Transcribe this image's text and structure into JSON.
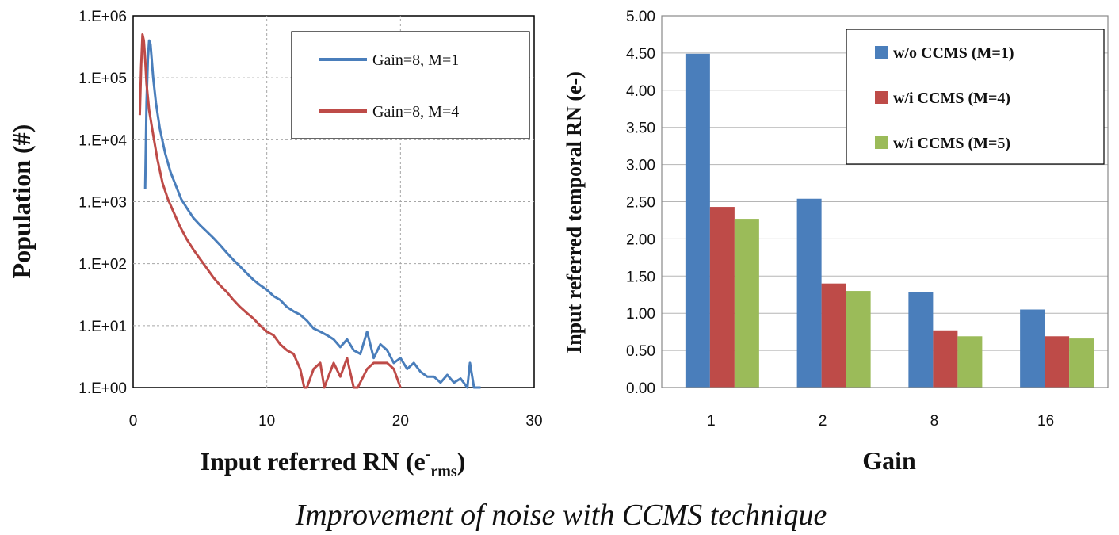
{
  "caption": "Improvement of noise with CCMS technique",
  "colors": {
    "blue": "#4a7ebb",
    "red": "#be4b48",
    "green": "#9bbb59",
    "grid": "#a6a6a6"
  },
  "chart_data": [
    {
      "type": "line",
      "xlabel_main": "Input referred RN (e",
      "xlabel_sup": "-",
      "xlabel_sub": "rms",
      "xlabel_end": ")",
      "ylabel": "Population (#)",
      "xlim": [
        0,
        30
      ],
      "xticks": [
        "0",
        "10",
        "20",
        "30"
      ],
      "ylim": [
        1,
        1000000
      ],
      "yscale": "log",
      "yticks": [
        "1.E+00",
        "1.E+01",
        "1.E+02",
        "1.E+03",
        "1.E+04",
        "1.E+05",
        "1.E+06"
      ],
      "grid": true,
      "legend_position": "top-right",
      "series": [
        {
          "name": "Gain=8, M=1",
          "color": "#4a7ebb",
          "x": [
            0.9,
            1.0,
            1.1,
            1.2,
            1.3,
            1.5,
            1.7,
            2.0,
            2.4,
            2.8,
            3.2,
            3.6,
            4.0,
            4.5,
            5.0,
            5.5,
            6.0,
            6.5,
            7.0,
            7.5,
            8.0,
            8.5,
            9.0,
            9.5,
            10.0,
            10.5,
            11.0,
            11.5,
            12.0,
            12.5,
            13.0,
            13.5,
            14.0,
            14.5,
            15.0,
            15.5,
            16.0,
            16.5,
            17.0,
            17.5,
            18.0,
            18.5,
            19.0,
            19.5,
            20.0,
            20.5,
            21.0,
            21.5,
            22.0,
            22.5,
            23.0,
            23.5,
            24.0,
            24.5,
            25.0,
            25.2,
            25.5,
            26.0
          ],
          "y": [
            1600,
            40000,
            200000,
            400000,
            350000,
            100000,
            40000,
            15000,
            6000,
            3000,
            1800,
            1100,
            800,
            550,
            420,
            330,
            260,
            200,
            150,
            115,
            90,
            70,
            55,
            45,
            38,
            30,
            26,
            20,
            17,
            15,
            12,
            9,
            8,
            7,
            6,
            4.5,
            6,
            4,
            3.5,
            8,
            3,
            5,
            4,
            2.5,
            3,
            2,
            2.5,
            1.8,
            1.5,
            1.5,
            1.2,
            1.6,
            1.2,
            1.4,
            1,
            2.5,
            1,
            1
          ]
        },
        {
          "name": "Gain=8, M=4",
          "color": "#be4b48",
          "x": [
            0.5,
            0.6,
            0.7,
            0.8,
            0.9,
            1.0,
            1.2,
            1.5,
            1.8,
            2.2,
            2.6,
            3.0,
            3.5,
            4.0,
            4.5,
            5.0,
            5.5,
            6.0,
            6.5,
            7.0,
            7.5,
            8.0,
            8.5,
            9.0,
            9.5,
            10.0,
            10.5,
            11.0,
            11.5,
            12.0,
            12.5,
            12.8,
            13.0,
            13.5,
            14.0,
            14.3,
            14.6,
            15.0,
            15.5,
            16.0,
            16.5,
            16.8,
            17.5,
            18.0,
            18.5,
            19.0,
            19.5,
            20.0
          ],
          "y": [
            25000,
            150000,
            500000,
            400000,
            200000,
            80000,
            30000,
            12000,
            5000,
            2000,
            1100,
            700,
            400,
            250,
            170,
            120,
            85,
            60,
            45,
            35,
            26,
            20,
            16,
            13,
            10,
            8,
            7,
            5,
            4,
            3.5,
            2,
            1,
            1,
            2,
            2.5,
            1,
            1.5,
            2.5,
            1.5,
            3,
            1,
            1,
            2,
            2.5,
            2.5,
            2.5,
            2,
            1
          ]
        }
      ]
    },
    {
      "type": "bar",
      "xlabel": "Gain",
      "ylabel": "Input referred temporal RN (e-)",
      "ylim": [
        0,
        5
      ],
      "yticks": [
        "0.00",
        "0.50",
        "1.00",
        "1.50",
        "2.00",
        "2.50",
        "3.00",
        "3.50",
        "4.00",
        "4.50",
        "5.00"
      ],
      "categories": [
        "1",
        "2",
        "8",
        "16"
      ],
      "grid": true,
      "legend_position": "top-right",
      "series": [
        {
          "name": "w/o CCMS (M=1)",
          "color": "#4a7ebb",
          "values": [
            4.49,
            2.54,
            1.28,
            1.05
          ]
        },
        {
          "name": "w/i CCMS (M=4)",
          "color": "#be4b48",
          "values": [
            2.43,
            1.4,
            0.77,
            0.69
          ]
        },
        {
          "name": "w/i CCMS (M=5)",
          "color": "#9bbb59",
          "values": [
            2.27,
            1.3,
            0.69,
            0.66
          ]
        }
      ]
    }
  ]
}
